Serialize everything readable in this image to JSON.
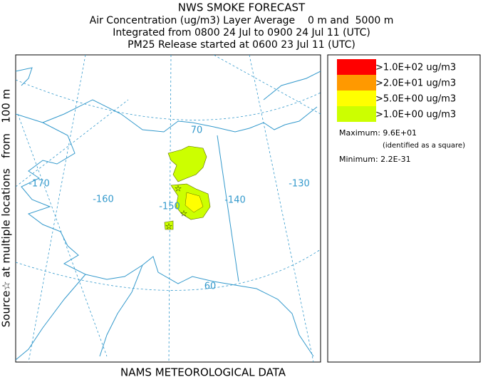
{
  "header": {
    "title": "NWS SMOKE FORECAST",
    "lines": [
      "Air Concentration (ug/m3) Layer Average    0 m and  5000 m",
      "Integrated from 0800 24 Jul to 0900 24 Jul 11 (UTC)",
      "PM25 Release started at 0600 23 Jul 11 (UTC)"
    ]
  },
  "side_label": "Source☆ at multiple locations   from   100 m",
  "footer": "NAMS METEOROLOGICAL DATA",
  "map": {
    "longitude_labels": [
      "-170",
      "-160",
      "-150",
      "-140",
      "-130"
    ],
    "latitude_labels": [
      "70",
      "60"
    ]
  },
  "legend": {
    "entries": [
      {
        "label": ">1.0E+02 ug/m3",
        "color": "#ff0000"
      },
      {
        "label": ">2.0E+01 ug/m3",
        "color": "#ff9900"
      },
      {
        "label": ">5.0E+00 ug/m3",
        "color": "#ffff00"
      },
      {
        "label": ">1.0E+00 ug/m3",
        "color": "#ccff00"
      }
    ],
    "maximum": "Maximum: 9.6E+01",
    "maximum_note": "(identified as a square)",
    "minimum": "Minimum: 2.2E-31"
  }
}
